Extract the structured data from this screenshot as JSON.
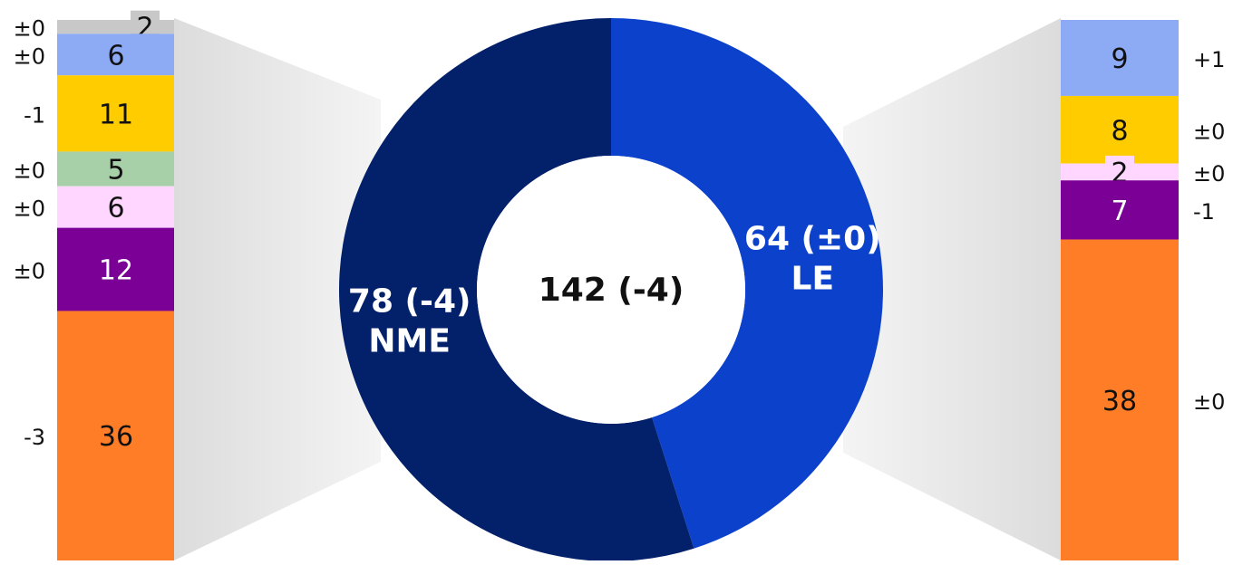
{
  "chart_data": {
    "type": "pie",
    "center_label": "142 (-4)",
    "donut": [
      {
        "name": "LE",
        "value": 64,
        "delta": "±0",
        "value_label": "64 (±0)",
        "color": "#0c41cc"
      },
      {
        "name": "NME",
        "value": 78,
        "delta": "-4",
        "value_label": "78 (-4)",
        "color": "#03216a"
      }
    ],
    "left_stack": {
      "parent": "NME",
      "segments": [
        {
          "value": 2,
          "label": "2",
          "delta": "±0",
          "color": "#c8c8c8"
        },
        {
          "value": 6,
          "label": "6",
          "delta": "±0",
          "color": "#8daaf5"
        },
        {
          "value": 11,
          "label": "11",
          "delta": "-1",
          "color": "#ffcc00"
        },
        {
          "value": 5,
          "label": "5",
          "delta": "±0",
          "color": "#a7cfa8"
        },
        {
          "value": 6,
          "label": "6",
          "delta": "±0",
          "color": "#ffd6ff"
        },
        {
          "value": 12,
          "label": "12",
          "delta": "±0",
          "color": "#7b0095"
        },
        {
          "value": 36,
          "label": "36",
          "delta": "-3",
          "color": "#ff7d26"
        }
      ]
    },
    "right_stack": {
      "parent": "LE",
      "segments": [
        {
          "value": 9,
          "label": "9",
          "delta": "+1",
          "color": "#8daaf5"
        },
        {
          "value": 8,
          "label": "8",
          "delta": "±0",
          "color": "#ffcc00"
        },
        {
          "value": 2,
          "label": "2",
          "delta": "±0",
          "color": "#ffd6ff"
        },
        {
          "value": 7,
          "label": "7",
          "delta": "-1",
          "color": "#7b0095"
        },
        {
          "value": 38,
          "label": "38",
          "delta": "±0",
          "color": "#ff7d26"
        }
      ]
    }
  }
}
